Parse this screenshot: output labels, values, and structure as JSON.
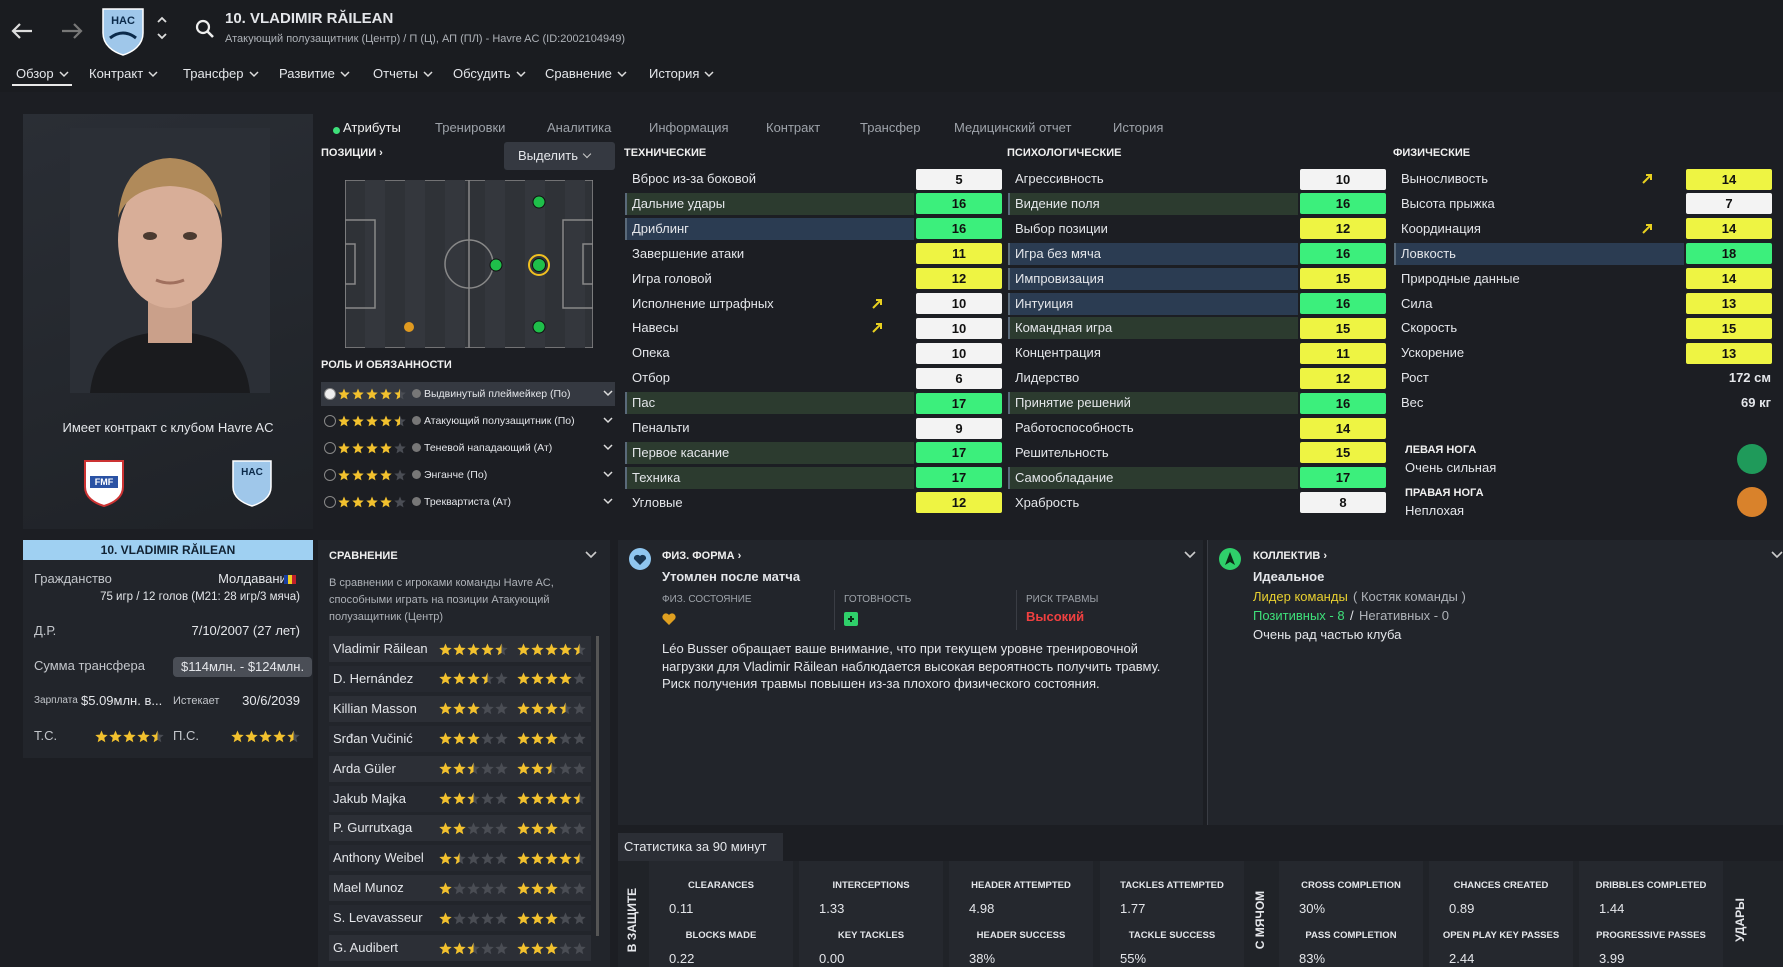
{
  "header": {
    "title": "10. VLADIMIR RĂILEAN",
    "subtitle": "Атакующий полузащитник (Центр) / П (Ц), АП (ПЛ) - Havre AC (ID:2002104949)",
    "club_badge": "HAC"
  },
  "nav": [
    "Обзор",
    "Контракт",
    "Трансфер",
    "Развитие",
    "Отчеты",
    "Обсудить",
    "Сравнение",
    "История"
  ],
  "tabs": [
    "Атрибуты",
    "Тренировки",
    "Аналитика",
    "Информация",
    "Контракт",
    "Трансфер",
    "Медицинский отчет",
    "История"
  ],
  "photo_panel": {
    "contract": "Имеет контракт с клубом Havre AC",
    "badges": [
      "FMF",
      "HAC"
    ]
  },
  "positions": {
    "title": "ПОЗИЦИИ ›",
    "button": "Выделить"
  },
  "roles": {
    "title": "РОЛЬ И ОБЯЗАННОСТИ",
    "items": [
      {
        "name": "Выдвинутый плеймейкер (По)",
        "stars": 4.5
      },
      {
        "name": "Атакующий полузащитник (По)",
        "stars": 4.5
      },
      {
        "name": "Теневой нападающий (Ат)",
        "stars": 4
      },
      {
        "name": "Энганче (По)",
        "stars": 4
      },
      {
        "name": "Треквартиста (Ат)",
        "stars": 4
      }
    ]
  },
  "attributes": {
    "technical": {
      "title": "ТЕХНИЧЕСКИЕ",
      "rows": [
        {
          "name": "Вброс из-за боковой",
          "value": 5
        },
        {
          "name": "Дальние удары",
          "value": 16,
          "highlight": "#2c3b2f"
        },
        {
          "name": "Дриблинг",
          "value": 16,
          "highlight": "#2b3c52"
        },
        {
          "name": "Завершение атаки",
          "value": 11
        },
        {
          "name": "Игра головой",
          "value": 12
        },
        {
          "name": "Исполнение штрафных",
          "value": 10,
          "arrow": true
        },
        {
          "name": "Навесы",
          "value": 10,
          "arrow": true
        },
        {
          "name": "Опека",
          "value": 10
        },
        {
          "name": "Отбор",
          "value": 6
        },
        {
          "name": "Пас",
          "value": 17,
          "highlight": "#2c3b2f"
        },
        {
          "name": "Пенальти",
          "value": 9
        },
        {
          "name": "Первое касание",
          "value": 17,
          "highlight": "#2c3b2f"
        },
        {
          "name": "Техника",
          "value": 17,
          "highlight": "#2c3b2f"
        },
        {
          "name": "Угловые",
          "value": 12
        }
      ]
    },
    "mental": {
      "title": "ПСИХОЛОГИЧЕСКИЕ",
      "rows": [
        {
          "name": "Агрессивность",
          "value": 10
        },
        {
          "name": "Видение поля",
          "value": 16,
          "highlight": "#2c3b2f"
        },
        {
          "name": "Выбор позиции",
          "value": 12
        },
        {
          "name": "Игра без мяча",
          "value": 16,
          "highlight": "#2b3c52"
        },
        {
          "name": "Импровизация",
          "value": 15,
          "highlight": "#2b3c52"
        },
        {
          "name": "Интуиция",
          "value": 16,
          "highlight": "#2b3c52"
        },
        {
          "name": "Командная игра",
          "value": 15,
          "highlight": "#2c3b2f"
        },
        {
          "name": "Концентрация",
          "value": 11
        },
        {
          "name": "Лидерство",
          "value": 12
        },
        {
          "name": "Принятие решений",
          "value": 16,
          "highlight": "#2c3b2f"
        },
        {
          "name": "Работоспособность",
          "value": 14
        },
        {
          "name": "Решительность",
          "value": 15
        },
        {
          "name": "Самообладание",
          "value": 17,
          "highlight": "#2c3b2f"
        },
        {
          "name": "Храбрость",
          "value": 8
        }
      ]
    },
    "physical": {
      "title": "ФИЗИЧЕСКИЕ",
      "rows": [
        {
          "name": "Выносливость",
          "value": 14,
          "arrow": true
        },
        {
          "name": "Высота прыжка",
          "value": 7
        },
        {
          "name": "Координация",
          "value": 14,
          "arrow": true
        },
        {
          "name": "Ловкость",
          "value": 18,
          "highlight": "#2b3c52"
        },
        {
          "name": "Природные данные",
          "value": 14
        },
        {
          "name": "Сила",
          "value": 13
        },
        {
          "name": "Скорость",
          "value": 15
        },
        {
          "name": "Ускорение",
          "value": 13
        }
      ],
      "height": {
        "label": "Рост",
        "value": "172 см"
      },
      "weight": {
        "label": "Вес",
        "value": "69 кг"
      },
      "left_foot": {
        "label": "ЛЕВАЯ НОГА",
        "value": "Очень сильная",
        "color": "#1f9a5a"
      },
      "right_foot": {
        "label": "ПРАВАЯ НОГА",
        "value": "Неплохая",
        "color": "#d9822b"
      }
    }
  },
  "profile": {
    "name": "10. VLADIMIR RĂILEAN",
    "citizenship_label": "Гражданство",
    "citizenship": "Молдаванин",
    "caps": "75 игр / 12 голов (М21: 28 игр/3 мяча)",
    "dob_label": "Д.Р.",
    "dob": "7/10/2007 (27 лет)",
    "transfer_label": "Сумма трансфера",
    "transfer": "$114млн. - $124млн.",
    "wage_label": "Зарплата",
    "wage": "$5.09млн. в...",
    "expires_label": "Истекает",
    "expires": "30/6/2039",
    "ca_label": "Т.С.",
    "ca": 4.5,
    "pa_label": "П.С.",
    "pa": 4.5
  },
  "comparison": {
    "title": "СРАВНЕНИЕ",
    "description": [
      "В сравнении с игроками команды Havre AC,",
      "способными играть на позиции Атакующий",
      "полузащитник (Центр)"
    ],
    "players": [
      {
        "name": "Vladimir Răilean",
        "current": 4.5,
        "potential": 4.5
      },
      {
        "name": "D. Hernández",
        "current": 3.5,
        "potential": 4
      },
      {
        "name": "Killian Masson",
        "current": 3,
        "potential": 3.5
      },
      {
        "name": "Srđan Vučinić",
        "current": 3,
        "potential": 3
      },
      {
        "name": "Arda Güler",
        "current": 2.5,
        "potential": 2.5
      },
      {
        "name": "Jakub Majka",
        "current": 2.5,
        "potential": 4.5
      },
      {
        "name": "P. Gurrutxaga",
        "current": 2,
        "potential": 3
      },
      {
        "name": "Anthony Weibel",
        "current": 1.5,
        "potential": 4.5
      },
      {
        "name": "Mael Munoz",
        "current": 1,
        "potential": 3
      },
      {
        "name": "S. Levavasseur",
        "current": 1,
        "potential": 3
      },
      {
        "name": "G. Audibert",
        "current": 2.5,
        "potential": 3
      }
    ]
  },
  "fitness": {
    "title": "ФИЗ. ФОРМА ›",
    "status": "Утомлен после матча",
    "condition_label": "ФИЗ. СОСТОЯНИЕ",
    "readiness_label": "ГОТОВНОСТЬ",
    "risk_label": "РИСК ТРАВМЫ",
    "risk": "Высокий",
    "text": [
      "Léo Busser обращает ваше внимание, что при текущем уровне тренировочной",
      "нагрузки для Vladimir Răilean наблюдается высокая вероятность получить травму.",
      "Риск получения травмы повышен из-за плохого физического состояния."
    ]
  },
  "team": {
    "title": "КОЛЛЕКТИВ ›",
    "status": "Идеальное",
    "role": "Лидер команды",
    "role_note": "( Костяк команды )",
    "positive": "Позитивных - 8",
    "separator": "/",
    "negative": "Негативных - 0",
    "mood": "Очень рад частью клуба"
  },
  "stats": {
    "title": "Статистика за 90 минут",
    "groups": [
      "В ЗАЩИТЕ",
      "С МЯЧОМ",
      "УДАРЫ"
    ],
    "cells": [
      {
        "label1": "CLEARANCES",
        "value1": "0.11",
        "label2": "BLOCKS MADE",
        "value2": "0.22"
      },
      {
        "label1": "INTERCEPTIONS",
        "value1": "1.33",
        "label2": "KEY TACKLES",
        "value2": "0.00"
      },
      {
        "label1": "HEADER ATTEMPTED",
        "value1": "4.98",
        "label2": "HEADER SUCCESS",
        "value2": "38%"
      },
      {
        "label1": "TACKLES ATTEMPTED",
        "value1": "1.77",
        "label2": "TACKLE SUCCESS",
        "value2": "55%"
      },
      {
        "label1": "CROSS COMPLETION",
        "value1": "30%",
        "label2": "PASS COMPLETION",
        "value2": "83%"
      },
      {
        "label1": "CHANCES CREATED",
        "value1": "0.89",
        "label2": "OPEN PLAY KEY PASSES",
        "value2": "2.44"
      },
      {
        "label1": "DRIBBLES COMPLETED",
        "value1": "1.44",
        "label2": "PROGRESSIVE PASSES",
        "value2": "3.99"
      }
    ]
  }
}
